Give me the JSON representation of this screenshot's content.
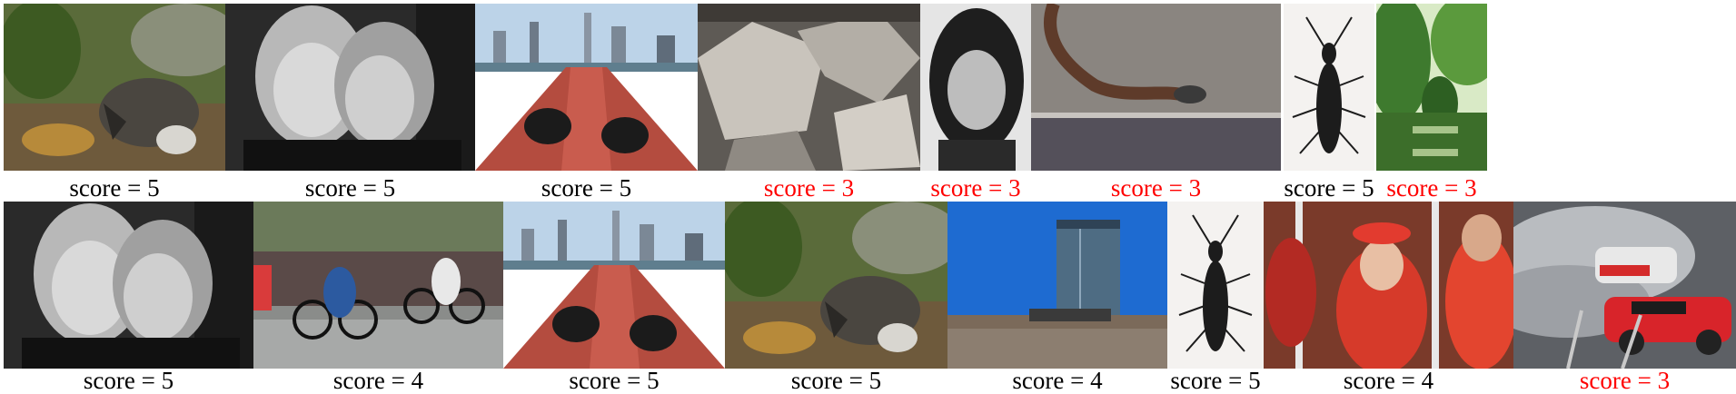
{
  "rows": [
    {
      "cells": [
        {
          "subject": "raccoon",
          "caption": "score = 5",
          "color": "#000000"
        },
        {
          "subject": "two-women-bw",
          "caption": "score = 5",
          "color": "#000000"
        },
        {
          "subject": "city-deck",
          "caption": "score = 5",
          "color": "#000000"
        },
        {
          "subject": "rocks",
          "caption": "score = 3",
          "color": "#ff0000"
        },
        {
          "subject": "woman-portrait-bw",
          "caption": "score = 3",
          "color": "#ff0000"
        },
        {
          "subject": "snake",
          "caption": "score = 3",
          "color": "#ff0000"
        },
        {
          "subject": "beetle",
          "caption": "score = 5",
          "color": "#000000"
        },
        {
          "subject": "garden",
          "caption": "score = 3",
          "color": "#ff0000"
        }
      ]
    },
    {
      "cells": [
        {
          "subject": "two-women-bw",
          "caption": "score = 5",
          "color": "#000000"
        },
        {
          "subject": "cyclists",
          "caption": "score = 4",
          "color": "#000000"
        },
        {
          "subject": "city-deck",
          "caption": "score = 5",
          "color": "#000000"
        },
        {
          "subject": "raccoon",
          "caption": "score = 5",
          "color": "#000000"
        },
        {
          "subject": "skyscraper",
          "caption": "score = 4",
          "color": "#000000"
        },
        {
          "subject": "beetle",
          "caption": "score = 5",
          "color": "#000000"
        },
        {
          "subject": "spectators-red",
          "caption": "score = 4",
          "color": "#000000"
        },
        {
          "subject": "drift-car",
          "caption": "score = 3",
          "color": "#ff0000"
        }
      ]
    }
  ]
}
